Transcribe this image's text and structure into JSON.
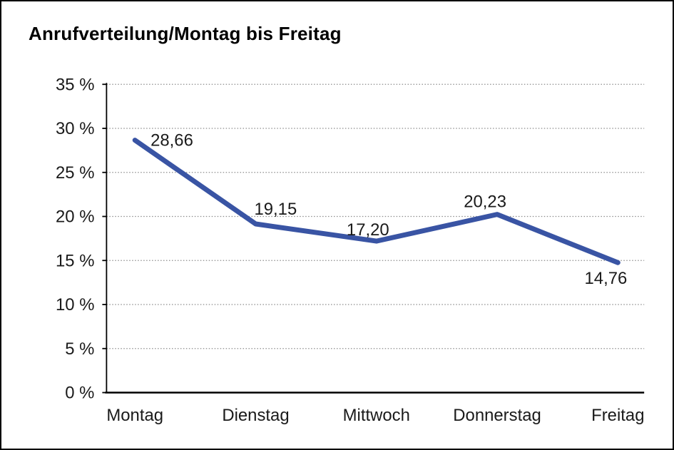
{
  "chart": {
    "title": "Anrufverteilung/Montag bis Freitag"
  },
  "chart_data": {
    "type": "line",
    "title": "Anrufverteilung/Montag bis Freitag",
    "categories": [
      "Montag",
      "Dienstag",
      "Mittwoch",
      "Donnerstag",
      "Freitag"
    ],
    "series": [
      {
        "name": "Anrufverteilung",
        "values": [
          28.66,
          19.15,
          17.2,
          20.23,
          14.76
        ],
        "value_labels": [
          "28,66",
          "19,15",
          "17,20",
          "20,23",
          "14,76"
        ]
      }
    ],
    "xlabel": "",
    "ylabel": "",
    "ylim": [
      0,
      35
    ],
    "ytick_step": 5,
    "ytick_labels": [
      "0 %",
      "5 %",
      "10 %",
      "15 %",
      "20 %",
      "25 %",
      "30 %",
      "35 %"
    ],
    "grid": "horizontal-dotted",
    "legend_position": "none"
  },
  "colors": {
    "line": "#3954A4",
    "grid": "#8C8C8C",
    "axis": "#000000",
    "text": "#1A1A1A",
    "frame_border": "#000000",
    "background": "#FFFFFF"
  }
}
